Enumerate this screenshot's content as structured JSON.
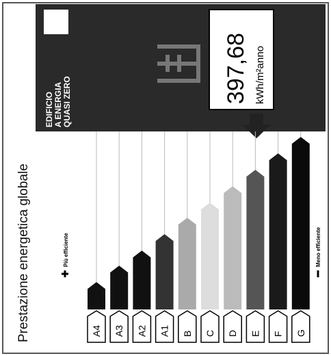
{
  "header": {
    "title": "Prestazione energetica globale"
  },
  "badge": {
    "label_lines": [
      "EDIFICIO",
      "A ENERGIA",
      "QUASI ZERO"
    ]
  },
  "indicator": {
    "value": "397,68",
    "unit": "kWh/m²anno"
  },
  "scale": {
    "more_efficient": "Più efficiente",
    "less_efficient": "Meno efficiente",
    "classes": [
      "A4",
      "A3",
      "A2",
      "A1",
      "B",
      "C",
      "D",
      "E",
      "F",
      "G"
    ]
  }
}
